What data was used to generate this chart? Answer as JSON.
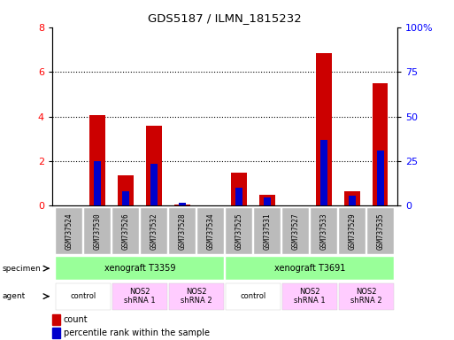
{
  "title": "GDS5187 / ILMN_1815232",
  "samples": [
    "GSM737524",
    "GSM737530",
    "GSM737526",
    "GSM737532",
    "GSM737528",
    "GSM737534",
    "GSM737525",
    "GSM737531",
    "GSM737527",
    "GSM737533",
    "GSM737529",
    "GSM737535"
  ],
  "count_values": [
    0.0,
    4.05,
    1.35,
    3.6,
    0.05,
    0.0,
    1.5,
    0.5,
    0.0,
    6.85,
    0.65,
    5.5
  ],
  "percentile_values_right_scale": [
    0.0,
    25.0,
    8.0,
    23.5,
    1.5,
    0.0,
    10.0,
    4.5,
    0.0,
    37.0,
    5.5,
    31.0
  ],
  "ylim_left": [
    0,
    8
  ],
  "ylim_right": [
    0,
    100
  ],
  "yticks_left": [
    0,
    2,
    4,
    6,
    8
  ],
  "ytick_labels_left": [
    "0",
    "2",
    "4",
    "6",
    "8"
  ],
  "yticks_right": [
    0,
    25,
    50,
    75,
    100
  ],
  "ytick_labels_right": [
    "0",
    "25",
    "50",
    "75",
    "100%"
  ],
  "specimen_groups": [
    {
      "label": "xenograft T3359",
      "start": 0,
      "end": 5
    },
    {
      "label": "xenograft T3691",
      "start": 6,
      "end": 11
    }
  ],
  "agent_groups": [
    {
      "label": "control",
      "start": 0,
      "end": 1,
      "color": "#ffffff"
    },
    {
      "label": "NOS2\nshRNA 1",
      "start": 2,
      "end": 3,
      "color": "#ffccff"
    },
    {
      "label": "NOS2\nshRNA 2",
      "start": 4,
      "end": 5,
      "color": "#ffccff"
    },
    {
      "label": "control",
      "start": 6,
      "end": 7,
      "color": "#ffffff"
    },
    {
      "label": "NOS2\nshRNA 1",
      "start": 8,
      "end": 9,
      "color": "#ffccff"
    },
    {
      "label": "NOS2\nshRNA 2",
      "start": 10,
      "end": 11,
      "color": "#ffccff"
    }
  ],
  "bar_color_red": "#cc0000",
  "bar_color_blue": "#0000cc",
  "specimen_bg_color": "#99ff99",
  "tick_label_bg": "#bbbbbb",
  "bar_width": 0.55,
  "blue_bar_width": 0.25,
  "legend_count_label": "count",
  "legend_percentile_label": "percentile rank within the sample",
  "specimen_label": "specimen",
  "agent_label": "agent"
}
